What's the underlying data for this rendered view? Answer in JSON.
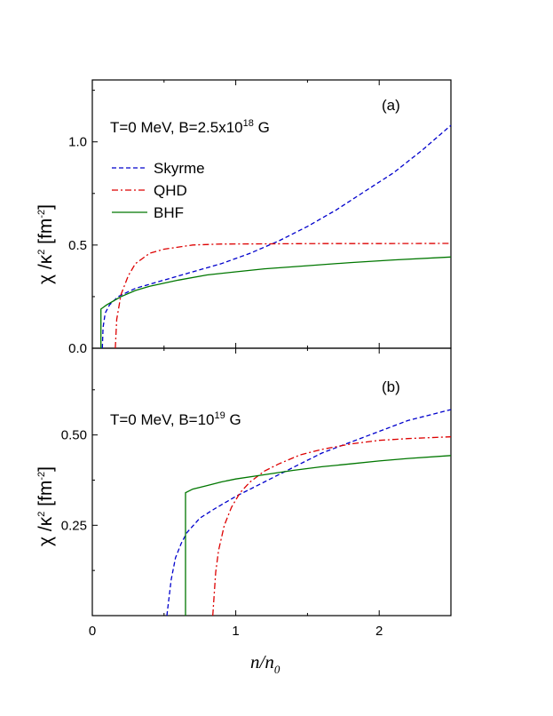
{
  "chart_data": [
    {
      "type": "line",
      "panel": "(a)",
      "annotation": {
        "main": "T=0 MeV, B=2.5x10",
        "exp": "18",
        "tail": " G"
      },
      "ylabel": {
        "main": "χ /κ",
        "sup1": "2",
        "unit": " [fm",
        "sup2": "-2",
        "close": "]"
      },
      "xlim": [
        0,
        2.5
      ],
      "ylim": [
        0,
        1.3
      ],
      "yticks": [
        0.0,
        0.5,
        1.0
      ],
      "ytick_labels": [
        "0.0",
        "0.5",
        "1.0"
      ],
      "series": [
        {
          "name": "Skyrme",
          "color": "#0000cc",
          "dash": "5,3",
          "x": [
            0.07,
            0.075,
            0.09,
            0.12,
            0.18,
            0.3,
            0.5,
            0.7,
            0.9,
            1.1,
            1.3,
            1.5,
            1.7,
            1.9,
            2.1,
            2.3,
            2.5
          ],
          "y": [
            0.0,
            0.1,
            0.17,
            0.21,
            0.25,
            0.29,
            0.33,
            0.37,
            0.41,
            0.46,
            0.52,
            0.59,
            0.67,
            0.76,
            0.85,
            0.96,
            1.08
          ]
        },
        {
          "name": "QHD",
          "color": "#dd0000",
          "dash": "7,3,2,3",
          "x": [
            0.16,
            0.17,
            0.2,
            0.25,
            0.3,
            0.4,
            0.5,
            0.7,
            0.9,
            1.2,
            1.6,
            2.0,
            2.5
          ],
          "y": [
            0.0,
            0.14,
            0.26,
            0.35,
            0.41,
            0.46,
            0.48,
            0.5,
            0.505,
            0.506,
            0.507,
            0.507,
            0.508
          ]
        },
        {
          "name": "BHF",
          "color": "#007700",
          "dash": "",
          "x": [
            0.06,
            0.06,
            0.1,
            0.15,
            0.2,
            0.3,
            0.4,
            0.6,
            0.8,
            1.0,
            1.2,
            1.5,
            1.8,
            2.1,
            2.5
          ],
          "y": [
            0.0,
            0.19,
            0.21,
            0.23,
            0.25,
            0.28,
            0.3,
            0.33,
            0.355,
            0.37,
            0.385,
            0.4,
            0.415,
            0.428,
            0.442
          ]
        }
      ]
    },
    {
      "type": "line",
      "panel": "(b)",
      "annotation": {
        "main": "T=0 MeV, B=10",
        "exp": "19",
        "tail": " G"
      },
      "ylabel": {
        "main": "χ /κ",
        "sup1": "2",
        "unit": " [fm",
        "sup2": "-2",
        "close": "]"
      },
      "xlim": [
        0,
        2.5
      ],
      "ylim": [
        0,
        0.74
      ],
      "yticks": [
        0.25,
        0.5
      ],
      "ytick_labels": [
        "0.25",
        "0.50"
      ],
      "xticks": [
        0,
        1,
        2
      ],
      "xtick_labels": [
        "0",
        "1",
        "2"
      ],
      "series": [
        {
          "name": "Skyrme",
          "color": "#0000cc",
          "dash": "5,3",
          "x": [
            0.52,
            0.55,
            0.58,
            0.62,
            0.66,
            0.75,
            0.85,
            1.0,
            1.2,
            1.4,
            1.6,
            1.8,
            2.0,
            2.2,
            2.5
          ],
          "y": [
            0.0,
            0.1,
            0.16,
            0.2,
            0.23,
            0.27,
            0.295,
            0.33,
            0.37,
            0.41,
            0.45,
            0.48,
            0.51,
            0.54,
            0.57
          ]
        },
        {
          "name": "QHD",
          "color": "#dd0000",
          "dash": "7,3,2,3",
          "x": [
            0.84,
            0.86,
            0.88,
            0.92,
            0.97,
            1.03,
            1.1,
            1.2,
            1.3,
            1.45,
            1.6,
            1.8,
            2.0,
            2.2,
            2.5
          ],
          "y": [
            0.0,
            0.12,
            0.18,
            0.25,
            0.3,
            0.34,
            0.37,
            0.4,
            0.42,
            0.445,
            0.46,
            0.475,
            0.485,
            0.49,
            0.495
          ]
        },
        {
          "name": "BHF",
          "color": "#007700",
          "dash": "",
          "x": [
            0.65,
            0.65,
            0.7,
            0.8,
            0.9,
            1.0,
            1.2,
            1.4,
            1.6,
            1.8,
            2.0,
            2.2,
            2.5
          ],
          "y": [
            0.0,
            0.34,
            0.35,
            0.36,
            0.37,
            0.378,
            0.39,
            0.402,
            0.412,
            0.42,
            0.428,
            0.435,
            0.443
          ]
        }
      ]
    }
  ],
  "legend": [
    {
      "name": "Skyrme",
      "color": "#0000cc",
      "dash": "5,3"
    },
    {
      "name": "QHD",
      "color": "#dd0000",
      "dash": "7,3,2,3"
    },
    {
      "name": "BHF",
      "color": "#007700",
      "dash": ""
    }
  ],
  "xlabel": {
    "main": "n/n",
    "sub": "0"
  }
}
